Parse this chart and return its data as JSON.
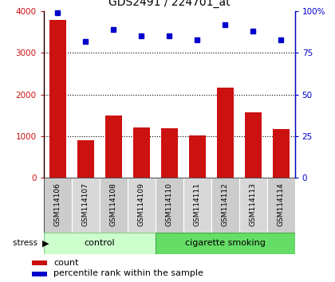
{
  "title": "GDS2491 / 224701_at",
  "samples": [
    "GSM114106",
    "GSM114107",
    "GSM114108",
    "GSM114109",
    "GSM114110",
    "GSM114111",
    "GSM114112",
    "GSM114113",
    "GSM114114"
  ],
  "counts": [
    3800,
    900,
    1500,
    1200,
    1180,
    1020,
    2170,
    1580,
    1170
  ],
  "percentiles": [
    99,
    82,
    89,
    85,
    85,
    83,
    92,
    88,
    83
  ],
  "groups": [
    "control",
    "control",
    "control",
    "control",
    "cigarette smoking",
    "cigarette smoking",
    "cigarette smoking",
    "cigarette smoking",
    "cigarette smoking"
  ],
  "bar_color": "#cc1111",
  "dot_color": "#0000cc",
  "left_ylim": [
    0,
    4000
  ],
  "right_ylim": [
    0,
    100
  ],
  "left_yticks": [
    0,
    1000,
    2000,
    3000,
    4000
  ],
  "right_yticks": [
    0,
    25,
    50,
    75,
    100
  ],
  "right_yticklabels": [
    "0",
    "25",
    "50",
    "75",
    "100%"
  ],
  "control_color": "#ccffcc",
  "smoke_color": "#66dd66",
  "label_bg_color": "#cccccc",
  "label_bg_color2": "#d8d8d8"
}
